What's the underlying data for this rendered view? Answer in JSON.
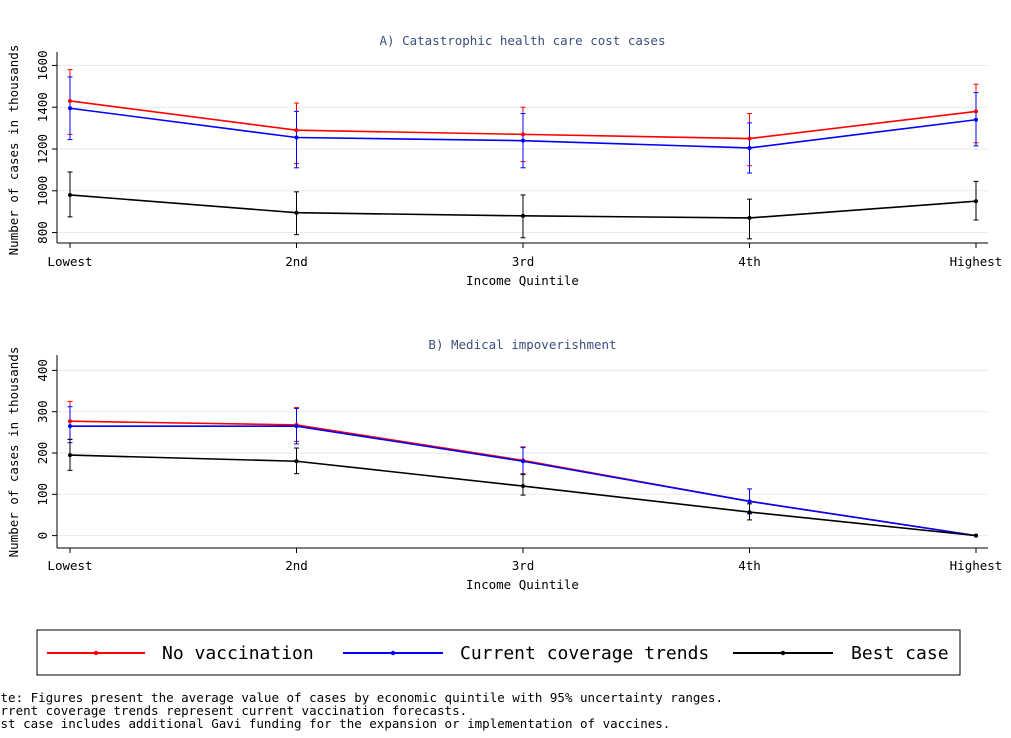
{
  "chart_data": [
    {
      "type": "line",
      "title": "A) Catastrophic health care cost cases",
      "xlabel": "Income Quintile",
      "ylabel": "Number of cases in thousands",
      "categories": [
        "Lowest",
        "2nd",
        "3rd",
        "4th",
        "Highest"
      ],
      "yticks": [
        800,
        1000,
        1200,
        1400,
        1600
      ],
      "ylim": [
        750,
        1650
      ],
      "grid": true,
      "series": [
        {
          "name": "No vaccination",
          "color": "#ff0000",
          "values": [
            1430,
            1290,
            1270,
            1250,
            1380
          ],
          "lower": [
            1270,
            1130,
            1140,
            1120,
            1230
          ],
          "upper": [
            1580,
            1420,
            1400,
            1370,
            1510
          ]
        },
        {
          "name": "Current coverage trends",
          "color": "#0000ff",
          "values": [
            1395,
            1255,
            1240,
            1205,
            1340
          ],
          "lower": [
            1245,
            1110,
            1110,
            1085,
            1215
          ],
          "upper": [
            1545,
            1380,
            1370,
            1325,
            1470
          ]
        },
        {
          "name": "Best case",
          "color": "#000000",
          "values": [
            980,
            895,
            880,
            870,
            950
          ],
          "lower": [
            875,
            790,
            775,
            770,
            860
          ],
          "upper": [
            1090,
            995,
            980,
            960,
            1045
          ]
        }
      ]
    },
    {
      "type": "line",
      "title": "B) Medical impoverishment",
      "xlabel": "Income Quintile",
      "ylabel": "Number of cases in thousands",
      "categories": [
        "Lowest",
        "2nd",
        "3rd",
        "4th",
        "Highest"
      ],
      "yticks": [
        0,
        100,
        200,
        300,
        400
      ],
      "ylim": [
        -30,
        430
      ],
      "grid": true,
      "series": [
        {
          "name": "No vaccination",
          "color": "#ff0000",
          "values": [
            277,
            268,
            182,
            83,
            0
          ],
          "lower": [
            233,
            228,
            150,
            53,
            0
          ],
          "upper": [
            325,
            310,
            215,
            113,
            0
          ]
        },
        {
          "name": "Current coverage trends",
          "color": "#0000ff",
          "values": [
            265,
            265,
            180,
            83,
            0
          ],
          "lower": [
            225,
            222,
            148,
            53,
            0
          ],
          "upper": [
            312,
            308,
            213,
            113,
            0
          ]
        },
        {
          "name": "Best case",
          "color": "#000000",
          "values": [
            195,
            180,
            120,
            57,
            0
          ],
          "lower": [
            158,
            150,
            98,
            38,
            0
          ],
          "upper": [
            233,
            212,
            148,
            77,
            0
          ]
        }
      ]
    }
  ],
  "legend": [
    {
      "label": "No vaccination",
      "color": "#ff0000"
    },
    {
      "label": "Current coverage trends",
      "color": "#0000ff"
    },
    {
      "label": "Best case",
      "color": "#000000"
    }
  ],
  "notes": [
    "ote: Figures present the average value of cases by economic quintile with 95% uncertainty ranges.",
    "urrent coverage trends represent current vaccination forecasts.",
    "est case includes additional Gavi funding for the expansion or implementation of vaccines."
  ]
}
